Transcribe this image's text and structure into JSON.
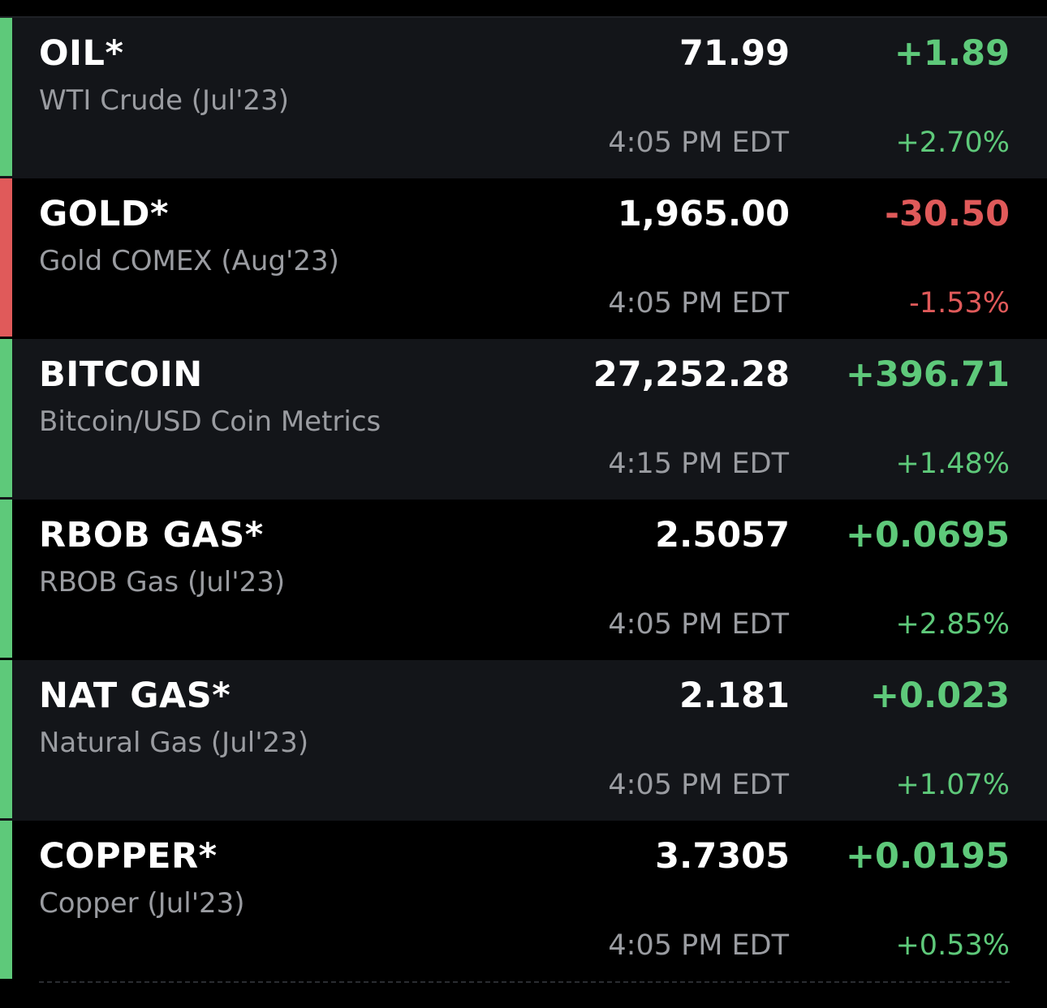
{
  "colors": {
    "up": "#5ec97a",
    "down": "#e05a5a",
    "row_dark": "#131519",
    "row_black": "#000000"
  },
  "quotes": [
    {
      "symbol": "OIL*",
      "name": "WTI Crude (Jul'23)",
      "last": "71.99",
      "time": "4:05 PM EDT",
      "change": "+1.89",
      "change_pct": "+2.70%",
      "direction": "up"
    },
    {
      "symbol": "GOLD*",
      "name": "Gold COMEX (Aug'23)",
      "last": "1,965.00",
      "time": "4:05 PM EDT",
      "change": "-30.50",
      "change_pct": "-1.53%",
      "direction": "down"
    },
    {
      "symbol": "BITCOIN",
      "name": "Bitcoin/USD Coin Metrics",
      "last": "27,252.28",
      "time": "4:15 PM EDT",
      "change": "+396.71",
      "change_pct": "+1.48%",
      "direction": "up"
    },
    {
      "symbol": "RBOB GAS*",
      "name": "RBOB Gas (Jul'23)",
      "last": "2.5057",
      "time": "4:05 PM EDT",
      "change": "+0.0695",
      "change_pct": "+2.85%",
      "direction": "up"
    },
    {
      "symbol": "NAT GAS*",
      "name": "Natural Gas (Jul'23)",
      "last": "2.181",
      "time": "4:05 PM EDT",
      "change": "+0.023",
      "change_pct": "+1.07%",
      "direction": "up"
    },
    {
      "symbol": "COPPER*",
      "name": "Copper (Jul'23)",
      "last": "3.7305",
      "time": "4:05 PM EDT",
      "change": "+0.0195",
      "change_pct": "+0.53%",
      "direction": "up"
    }
  ]
}
